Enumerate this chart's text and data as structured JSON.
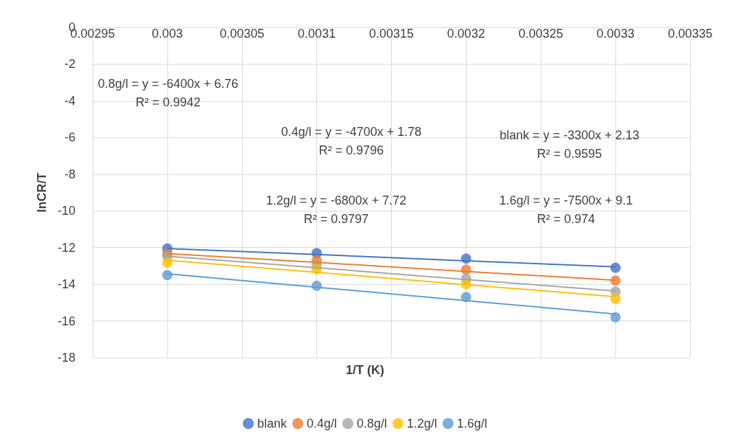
{
  "chart_data": {
    "type": "scatter",
    "xlabel": "1/T (K)",
    "ylabel": "lnCR/T",
    "x": [
      0.003,
      0.0031,
      0.0032,
      0.0033
    ],
    "series": [
      {
        "name": "blank",
        "color": "#4472c4",
        "values": [
          -12.05,
          -12.3,
          -12.6,
          -13.1
        ]
      },
      {
        "name": "0.4g/l",
        "color": "#ed7d31",
        "values": [
          -12.33,
          -12.7,
          -13.2,
          -13.8
        ]
      },
      {
        "name": "0.8g/l",
        "color": "#a5a5a5",
        "values": [
          -12.47,
          -12.96,
          -13.7,
          -14.4
        ]
      },
      {
        "name": "1.2g/l",
        "color": "#ffc000",
        "values": [
          -12.83,
          -13.18,
          -14.0,
          -14.8
        ]
      },
      {
        "name": "1.6g/l",
        "color": "#5b9bd5",
        "values": [
          -13.5,
          -14.08,
          -14.7,
          -15.8
        ]
      },
      {
        "type": "line",
        "color": "#4472c4",
        "marker": "none",
        "values": [
          -12.05,
          -12.38,
          -12.72,
          -13.05
        ]
      },
      {
        "type": "line",
        "color": "#ed7d31",
        "marker": "none",
        "values": [
          -12.33,
          -12.81,
          -13.3,
          -13.78
        ]
      },
      {
        "type": "line",
        "color": "#a5a5a5",
        "marker": "none",
        "values": [
          -12.47,
          -13.1,
          -13.74,
          -14.37
        ]
      },
      {
        "type": "line",
        "color": "#ffc000",
        "marker": "none",
        "values": [
          -12.69,
          -13.35,
          -14.02,
          -14.68
        ]
      },
      {
        "type": "line",
        "color": "#5b9bd5",
        "marker": "none",
        "values": [
          -13.43,
          -14.16,
          -14.89,
          -15.62
        ]
      }
    ],
    "xlim": [
      0.00295,
      0.00335
    ],
    "xticks": [
      0.00295,
      0.003,
      0.00305,
      0.0031,
      0.00315,
      0.0032,
      0.00325,
      0.0033,
      0.00335
    ],
    "ylim": [
      -18,
      0
    ],
    "yticks": [
      -18,
      -16,
      -14,
      -12,
      -10,
      -8,
      -6,
      -4,
      -2,
      0
    ],
    "annotations": [
      "0.8g/l = y = -6400x + 6.76\nR² = 0.9942",
      "0.4g/l = y = -4700x + 1.78\nR² = 0.9796",
      "blank = y = -3300x + 2.13\nR² = 0.9595",
      "1.2g/l = y = -6800x + 7.72\nR² = 0.9797",
      "1.6g/l = y = -7500x + 9.1\nR² = 0.974"
    ],
    "grid": true,
    "legend": "bottom",
    "marker": "circle",
    "line_style": "solid"
  }
}
